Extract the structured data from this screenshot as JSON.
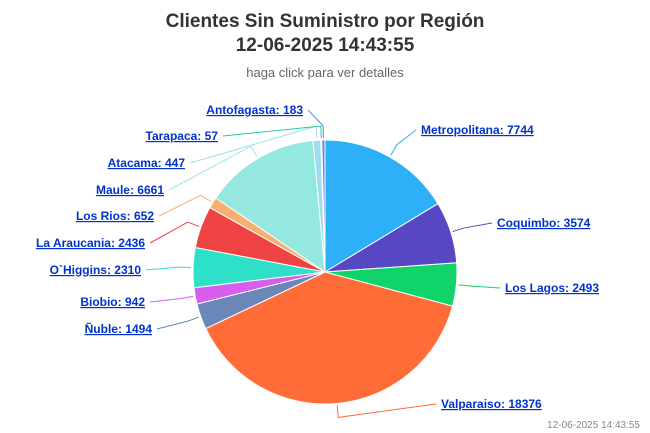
{
  "chart_data": {
    "type": "pie",
    "title_line1": "Clientes Sin Suministro por Región",
    "title_line2": "12-06-2025 14:43:55",
    "subtitle": "haga click para ver detalles",
    "timestamp": "12-06-2025 14:43:55",
    "slices": [
      {
        "name": "Metropolitana",
        "value": 7744,
        "label": "Metropolitana: 7744",
        "color": "#2db0f7"
      },
      {
        "name": "Coquimbo",
        "value": 3574,
        "label": "Coquimbo: 3574",
        "color": "#5747c2"
      },
      {
        "name": "Los Lagos",
        "value": 2493,
        "label": "Los Lagos: 2493",
        "color": "#10d36a"
      },
      {
        "name": "Valparaiso",
        "value": 18376,
        "label": "Valparaiso: 18376",
        "color": "#ff6c37"
      },
      {
        "name": "Ñuble",
        "value": 1494,
        "label": "Ñuble: 1494",
        "color": "#6b86b8"
      },
      {
        "name": "Biobio",
        "value": 942,
        "label": "Biobio: 942",
        "color": "#d65ff0"
      },
      {
        "name": "O`Higgins",
        "value": 2310,
        "label": "O`Higgins: 2310",
        "color": "#2ee0c8"
      },
      {
        "name": "La Araucania",
        "value": 2436,
        "label": "La Araucania: 2436",
        "color": "#f04444"
      },
      {
        "name": "Los Rios",
        "value": 652,
        "label": "Los Rios: 652",
        "color": "#f8b070"
      },
      {
        "name": "Maule",
        "value": 6661,
        "label": "Maule: 6661",
        "color": "#95e8e0"
      },
      {
        "name": "Atacama",
        "value": 447,
        "label": "Atacama: 447",
        "color": "#a0dcf0"
      },
      {
        "name": "Tarapaca",
        "value": 57,
        "label": "Tarapaca: 57",
        "color": "#27c9a0"
      },
      {
        "name": "Antofagasta",
        "value": 183,
        "label": "Antofagasta: 183",
        "color": "#5b8fd6"
      }
    ]
  }
}
